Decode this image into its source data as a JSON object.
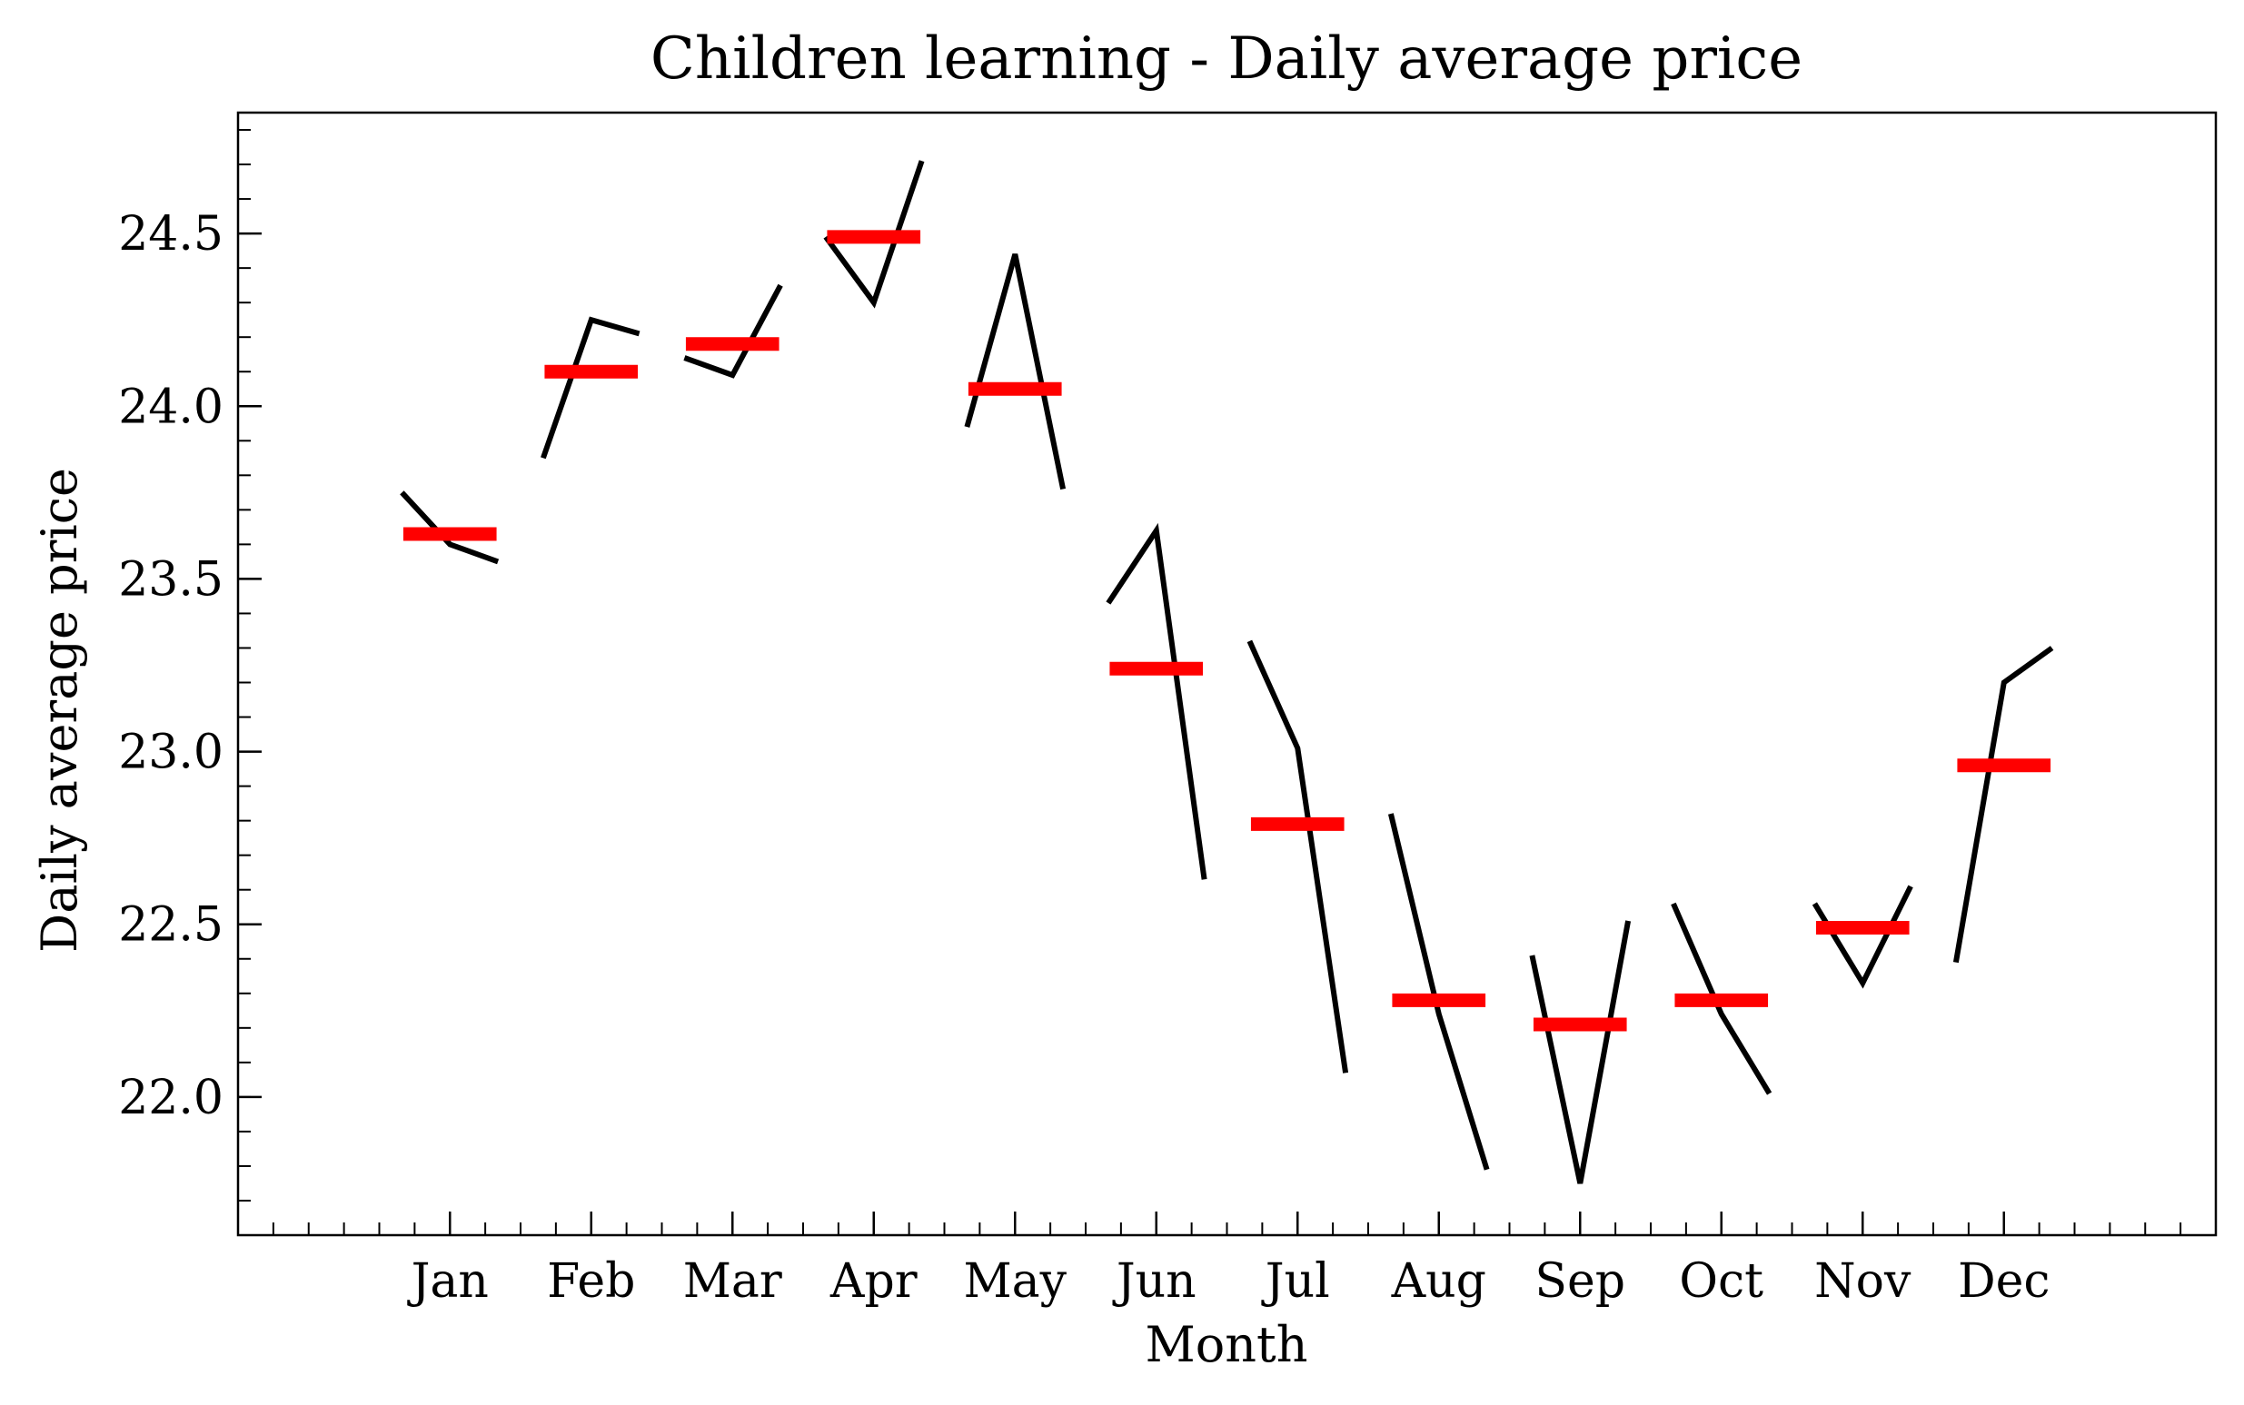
{
  "chart_data": {
    "type": "line",
    "title": "Children learning - Daily average price",
    "xlabel": "Month",
    "ylabel": "Daily average price",
    "categories": [
      "Jan",
      "Feb",
      "Mar",
      "Apr",
      "May",
      "Jun",
      "Jul",
      "Aug",
      "Sep",
      "Oct",
      "Nov",
      "Dec"
    ],
    "ylim": [
      21.6,
      24.85
    ],
    "yticks": [
      "22.0",
      "22.5",
      "23.0",
      "23.5",
      "24.0",
      "24.5"
    ],
    "series": [
      {
        "values": [
          [
            23.75,
            23.6,
            23.55
          ],
          [
            23.85,
            24.25,
            24.21
          ],
          [
            24.14,
            24.09,
            24.35
          ],
          [
            24.49,
            24.3,
            24.71
          ],
          [
            23.94,
            24.44,
            23.76
          ],
          [
            23.43,
            23.64,
            22.63
          ],
          [
            23.32,
            23.01,
            22.07
          ],
          [
            22.82,
            22.24,
            21.79
          ],
          [
            22.41,
            21.75,
            22.51
          ],
          [
            22.56,
            22.24,
            22.01
          ],
          [
            22.56,
            22.33,
            22.61
          ],
          [
            22.39,
            23.2,
            23.3
          ]
        ]
      },
      {
        "values": [
          23.63,
          24.1,
          24.18,
          24.49,
          24.05,
          23.24,
          22.79,
          22.28,
          22.21,
          22.28,
          22.49,
          22.96
        ]
      }
    ],
    "colors": {
      "daily": "#000000",
      "mean": "#ff0000"
    },
    "grid": false,
    "legend": "none"
  }
}
